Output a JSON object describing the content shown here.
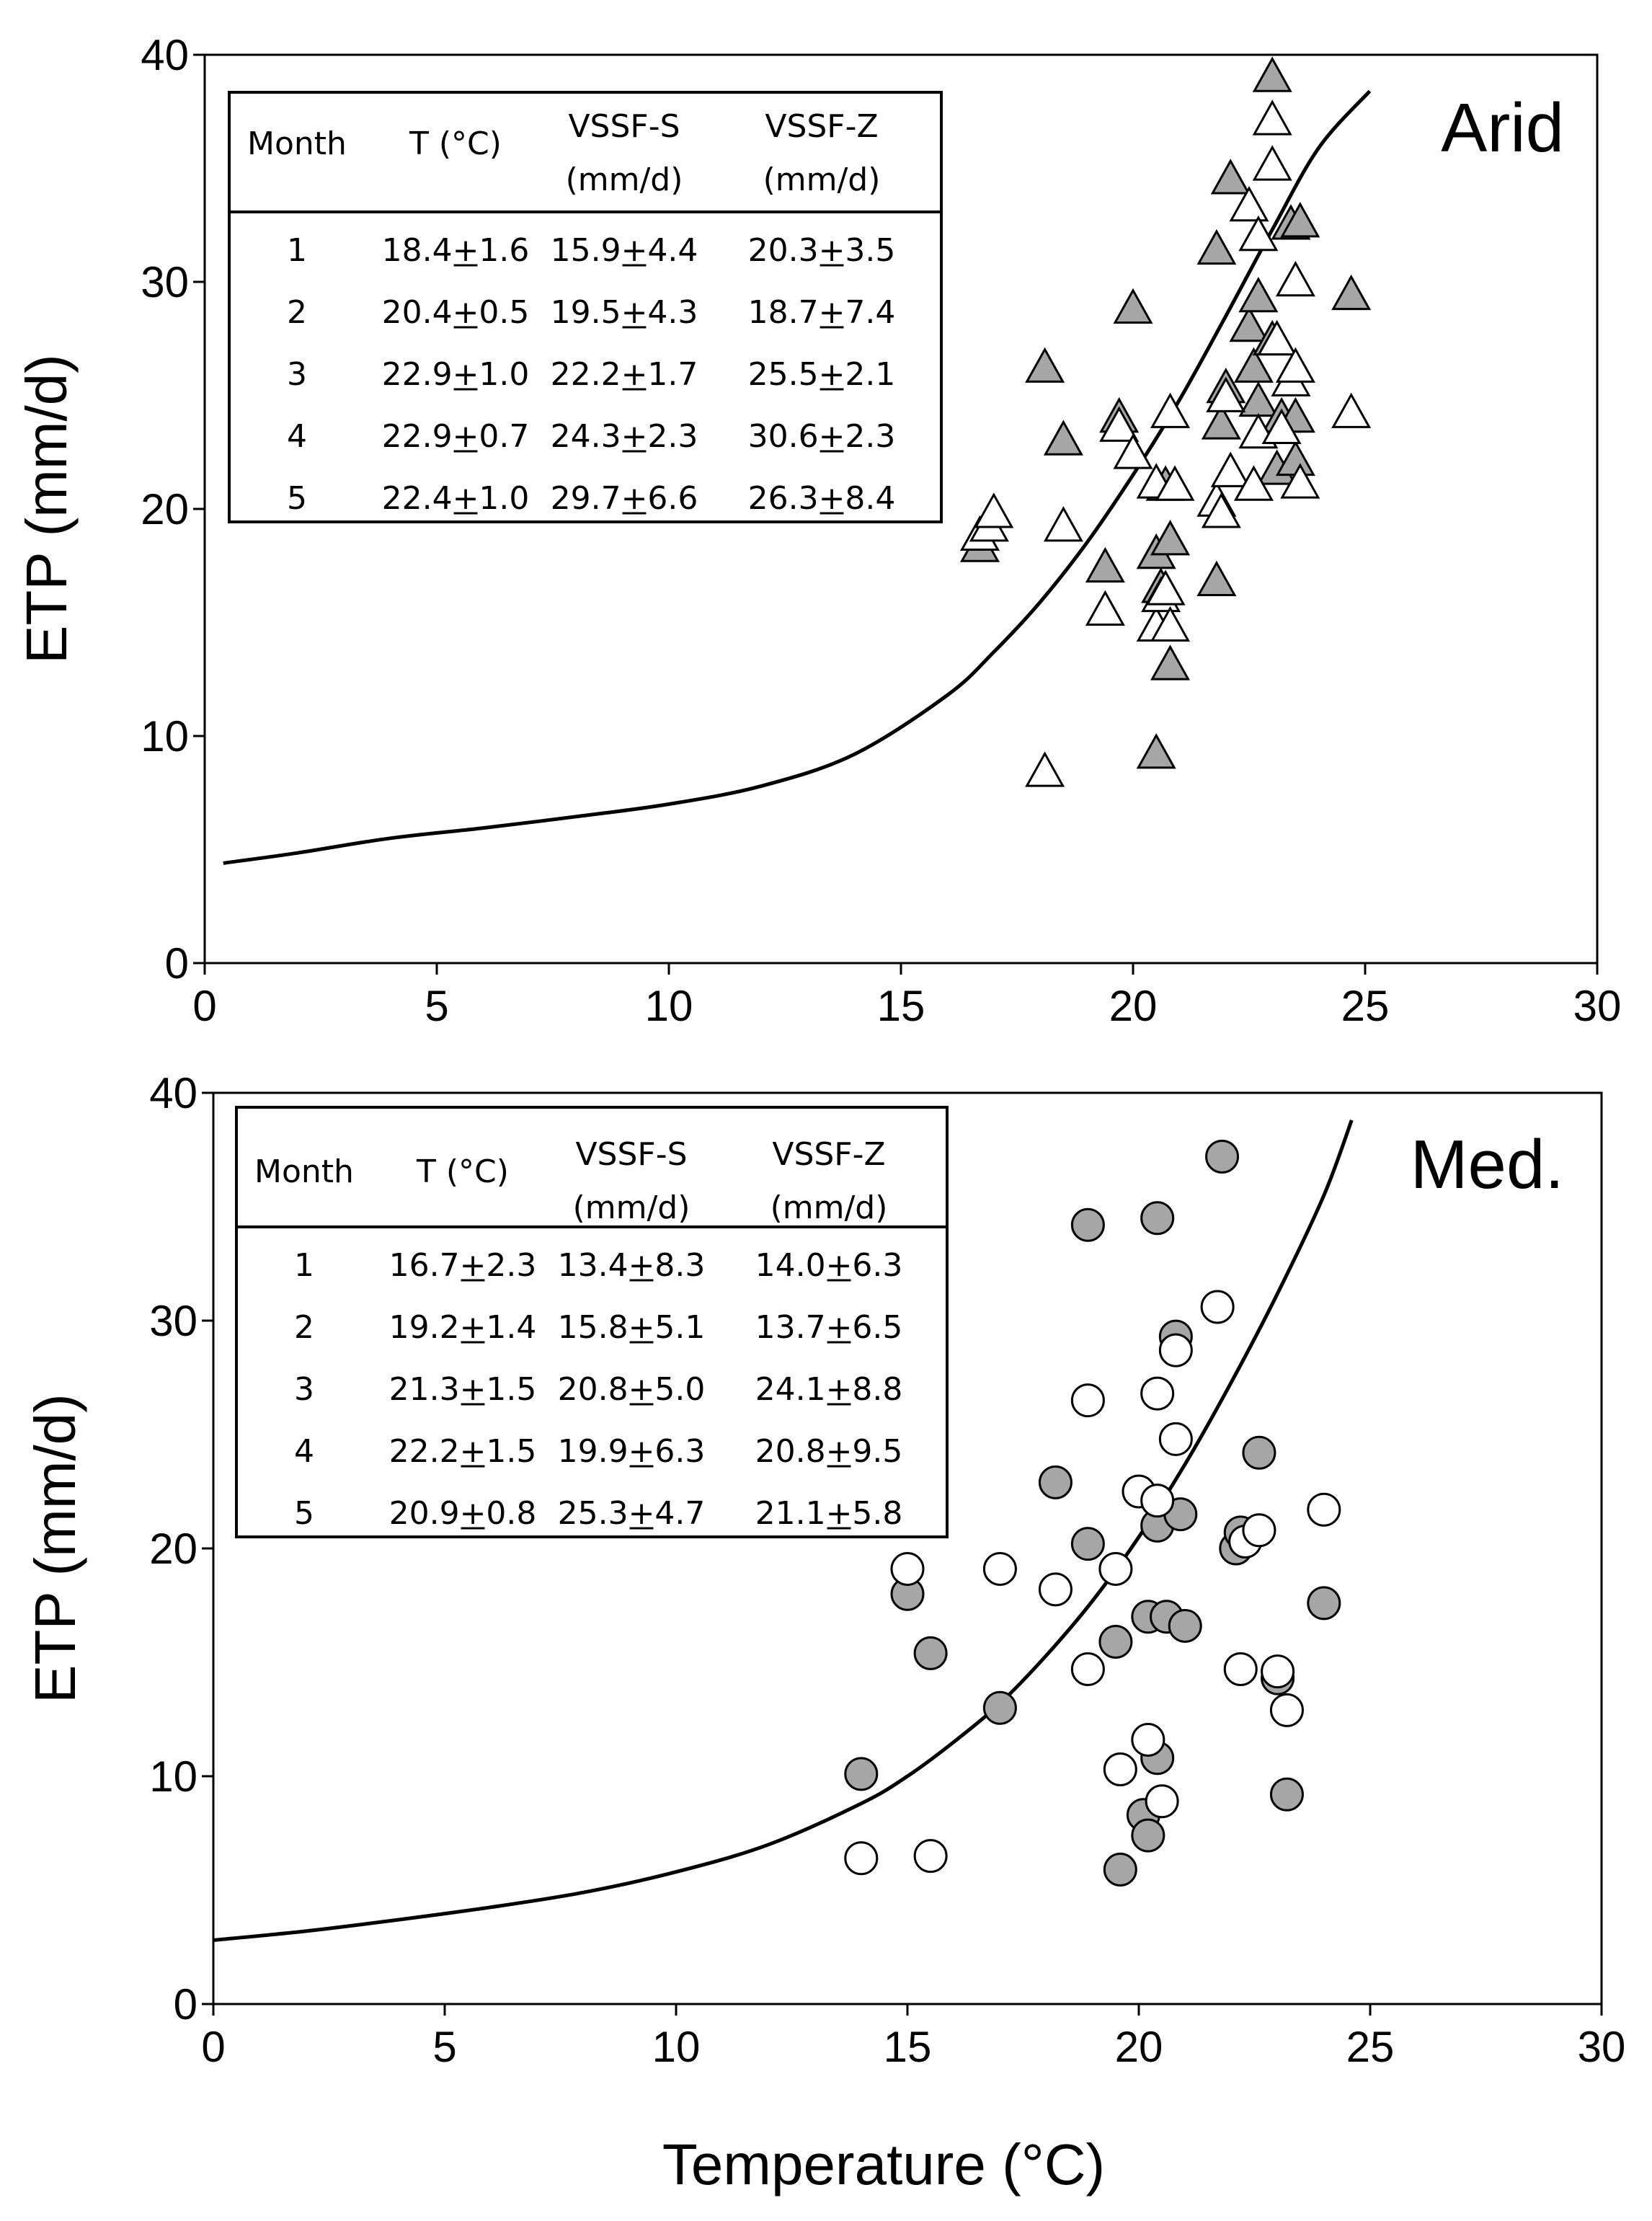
{
  "chart_data": [
    {
      "type": "scatter",
      "region_label": "Arid",
      "xlabel": "",
      "ylabel": "ETP (mm/d)",
      "xlim": [
        0,
        30
      ],
      "ylim": [
        0,
        40
      ],
      "xticks": [
        "0",
        "5",
        "10",
        "15",
        "20",
        "25",
        "30"
      ],
      "yticks": [
        "0",
        "10",
        "20",
        "30",
        "40"
      ],
      "marker": "triangle",
      "curve": {
        "x": [
          0.4,
          2,
          4,
          6,
          8,
          10,
          12,
          14,
          16,
          17,
          18,
          19,
          20,
          21,
          22,
          23,
          24,
          25.1
        ],
        "y": [
          4.4,
          4.85,
          5.5,
          5.95,
          6.45,
          7.0,
          7.8,
          9.2,
          11.8,
          13.7,
          15.9,
          18.5,
          21.5,
          24.8,
          28.5,
          32.3,
          35.9,
          38.4
        ]
      },
      "series": [
        {
          "fill": "#a6a6a6",
          "x": [
            16.7,
            18.1,
            18.5,
            19.4,
            19.7,
            20.0,
            20.5,
            20.5,
            20.6,
            20.7,
            20.8,
            20.8,
            21.8,
            21.8,
            21.9,
            22.0,
            22.1,
            22.5,
            22.6,
            22.7,
            22.7,
            23.0,
            23.0,
            23.1,
            23.2,
            23.4,
            23.5,
            23.5,
            23.6,
            24.7
          ],
          "y": [
            18.3,
            26.2,
            23.0,
            17.4,
            24.0,
            28.8,
            9.2,
            18.0,
            16.5,
            21.0,
            13.1,
            18.6,
            31.4,
            16.8,
            23.7,
            25.3,
            34.5,
            28.0,
            26.2,
            24.7,
            29.3,
            39.0,
            27.4,
            21.7,
            24.0,
            32.5,
            22.1,
            24.0,
            32.6,
            29.4
          ]
        },
        {
          "fill": "#ffffff",
          "x": [
            16.7,
            16.9,
            17.0,
            18.1,
            18.5,
            19.4,
            19.7,
            20.0,
            20.5,
            20.5,
            20.6,
            20.7,
            20.8,
            20.8,
            20.9,
            21.8,
            21.9,
            22.0,
            22.1,
            22.5,
            22.6,
            22.7,
            22.7,
            23.0,
            23.0,
            23.1,
            23.2,
            23.4,
            23.5,
            23.5,
            23.6,
            24.7
          ],
          "y": [
            18.8,
            19.2,
            19.8,
            8.4,
            19.2,
            15.5,
            23.6,
            22.4,
            21.1,
            14.8,
            16.1,
            16.4,
            24.2,
            14.8,
            21.0,
            20.3,
            19.8,
            24.9,
            21.6,
            33.3,
            21.0,
            23.3,
            32.0,
            37.1,
            35.1,
            27.4,
            23.5,
            25.6,
            30.0,
            26.2,
            21.1,
            24.2
          ]
        }
      ],
      "table": {
        "headers": [
          [
            "Month"
          ],
          [
            "T (°C)"
          ],
          [
            "VSSF-S",
            "(mm/d)"
          ],
          [
            "VSSF-Z",
            "(mm/d)"
          ]
        ],
        "rows": [
          [
            "1",
            "18.4+1.6",
            "15.9+4.4",
            "20.3+3.5"
          ],
          [
            "2",
            "20.4+0.5",
            "19.5+4.3",
            "18.7+7.4"
          ],
          [
            "3",
            "22.9+1.0",
            "22.2+1.7",
            "25.5+2.1"
          ],
          [
            "4",
            "22.9+0.7",
            "24.3+2.3",
            "30.6+2.3"
          ],
          [
            "5",
            "22.4+1.0",
            "29.7+6.6",
            "26.3+8.4"
          ]
        ]
      }
    },
    {
      "type": "scatter",
      "region_label": "Med.",
      "xlabel": "Temperature (°C)",
      "ylabel": "ETP (mm/d)",
      "xlim": [
        0,
        30
      ],
      "ylim": [
        0,
        40
      ],
      "xticks": [
        "0",
        "5",
        "10",
        "15",
        "20",
        "25",
        "30"
      ],
      "yticks": [
        "0",
        "10",
        "20",
        "30",
        "40"
      ],
      "marker": "circle",
      "curve": {
        "x": [
          0,
          2,
          4,
          6,
          8,
          10,
          12,
          14,
          15,
          16,
          17,
          18,
          19,
          20,
          21,
          22,
          23,
          24,
          24.6
        ],
        "y": [
          2.8,
          3.2,
          3.7,
          4.25,
          4.9,
          5.8,
          7.0,
          8.8,
          10.0,
          11.5,
          13.2,
          15.3,
          17.7,
          20.5,
          23.7,
          27.3,
          31.2,
          35.5,
          38.8
        ]
      },
      "series": [
        {
          "fill": "#a6a6a6",
          "x": [
            14.0,
            15.0,
            15.5,
            17.0,
            18.2,
            18.9,
            18.9,
            19.5,
            19.6,
            20.1,
            20.2,
            20.2,
            20.4,
            20.4,
            20.4,
            20.6,
            20.8,
            20.9,
            21.0,
            21.8,
            22.1,
            22.2,
            22.6,
            23.0,
            23.2,
            24.0
          ],
          "y": [
            10.1,
            18.0,
            15.4,
            13.0,
            22.9,
            34.2,
            20.2,
            15.9,
            5.9,
            8.3,
            7.4,
            17.0,
            34.5,
            21.0,
            10.8,
            17.0,
            29.3,
            21.5,
            16.6,
            37.2,
            20.0,
            20.7,
            24.2,
            14.3,
            9.2,
            17.6
          ]
        },
        {
          "fill": "#ffffff",
          "x": [
            14.0,
            15.0,
            15.5,
            17.0,
            18.2,
            18.9,
            18.9,
            19.5,
            19.6,
            20.0,
            20.2,
            20.4,
            20.4,
            20.5,
            20.8,
            20.8,
            21.7,
            22.2,
            22.3,
            22.6,
            23.0,
            23.2,
            24.0
          ],
          "y": [
            6.4,
            19.1,
            6.5,
            19.1,
            18.2,
            26.5,
            14.7,
            19.1,
            10.3,
            22.5,
            11.6,
            26.8,
            22.1,
            8.9,
            28.7,
            24.8,
            30.6,
            14.7,
            20.3,
            20.8,
            14.6,
            12.9,
            21.7
          ]
        }
      ],
      "table": {
        "headers": [
          [
            "Month"
          ],
          [
            "T (°C)"
          ],
          [
            "VSSF-S",
            "(mm/d)"
          ],
          [
            "VSSF-Z",
            "(mm/d)"
          ]
        ],
        "rows": [
          [
            "1",
            "16.7+2.3",
            "13.4+8.3",
            "14.0+6.3"
          ],
          [
            "2",
            "19.2+1.4",
            "15.8+5.1",
            "13.7+6.5"
          ],
          [
            "3",
            "21.3+1.5",
            "20.8+5.0",
            "24.1+8.8"
          ],
          [
            "4",
            "22.2+1.5",
            "19.9+6.3",
            "20.8+9.5"
          ],
          [
            "5",
            "20.9+0.8",
            "25.3+4.7",
            "21.1+5.8"
          ]
        ]
      }
    }
  ]
}
